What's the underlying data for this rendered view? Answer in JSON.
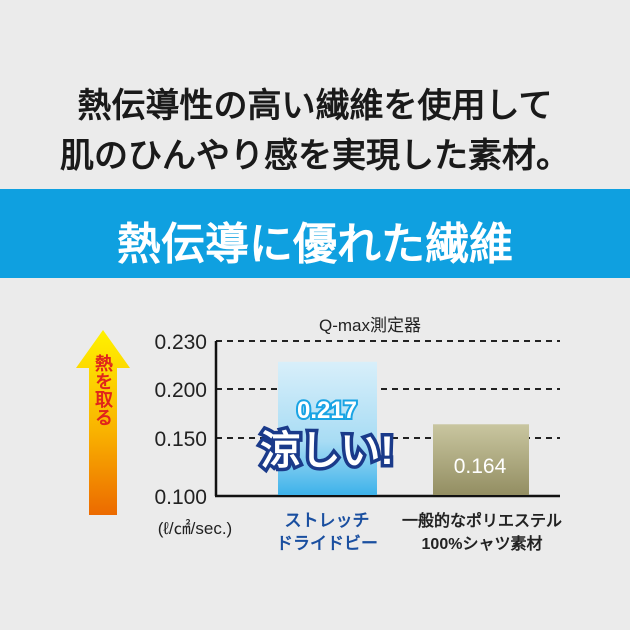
{
  "headline": {
    "line1": "熱伝導性の高い繊維を使用して",
    "line2": "肌のひんやり感を実現した素材。"
  },
  "banner": {
    "title": "熱伝導に優れた繊維",
    "color": "#0fa0e0"
  },
  "chart_data": {
    "type": "bar",
    "title": "Q-max測定器",
    "ylabel": "(ℓ/㎠/sec.)",
    "side_arrow_label": "熱を取る",
    "yticks": [
      "0.230",
      "0.200",
      "0.150",
      "0.100"
    ],
    "ylim": [
      0.1,
      0.23
    ],
    "grid": "dashed horizontal",
    "categories": [
      {
        "line1": "ストレッチ",
        "line2": "ドライドビー"
      },
      {
        "line1": "一般的なポリエステル",
        "line2": "100%シャツ素材"
      }
    ],
    "values": [
      0.217,
      0.164
    ],
    "value_labels": [
      "0.217",
      "0.164"
    ],
    "callout": "涼しい!",
    "colors": {
      "bar1": "#5cc4ee",
      "bar2": "#a39f74",
      "category1_text": "#1a4fa0",
      "category2_text": "#222222"
    }
  }
}
